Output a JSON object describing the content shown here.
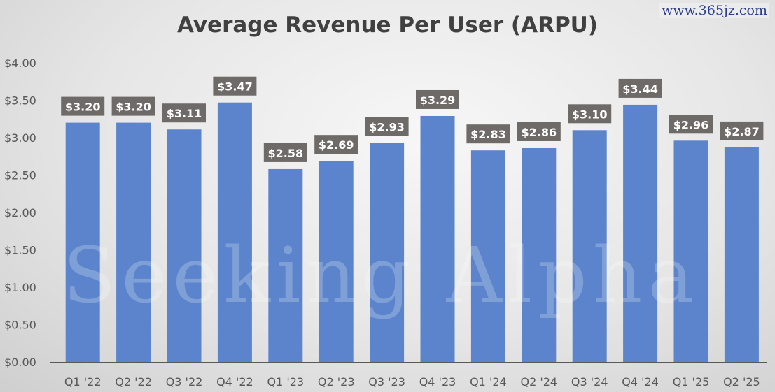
{
  "chart_data": {
    "type": "bar",
    "title": "Average Revenue Per User (ARPU)",
    "categories": [
      "Q1 '22",
      "Q2 '22",
      "Q3 '22",
      "Q4 '22",
      "Q1 '23",
      "Q2 '23",
      "Q3 '23",
      "Q4 '23",
      "Q1 '24",
      "Q2 '24",
      "Q3 '24",
      "Q4 '24",
      "Q1 '25",
      "Q2 '25"
    ],
    "values": [
      3.2,
      3.2,
      3.11,
      3.47,
      2.58,
      2.69,
      2.93,
      3.29,
      2.83,
      2.86,
      3.1,
      3.44,
      2.96,
      2.87
    ],
    "data_labels": [
      "$3.20",
      "$3.20",
      "$3.11",
      "$3.47",
      "$2.58",
      "$2.69",
      "$2.93",
      "$3.29",
      "$2.83",
      "$2.86",
      "$3.10",
      "$3.44",
      "$2.96",
      "$2.87"
    ],
    "yticks": [
      "$0.00",
      "$0.50",
      "$1.00",
      "$1.50",
      "$2.00",
      "$2.50",
      "$3.00",
      "$3.50",
      "$4.00"
    ],
    "ylim": [
      0,
      4
    ],
    "grid": false,
    "bar_color": "#5b84cc",
    "label_box_color": "#6e6a68"
  },
  "watermarks": {
    "main": "Seeking Alpha",
    "corner": "www.365jz.com"
  }
}
